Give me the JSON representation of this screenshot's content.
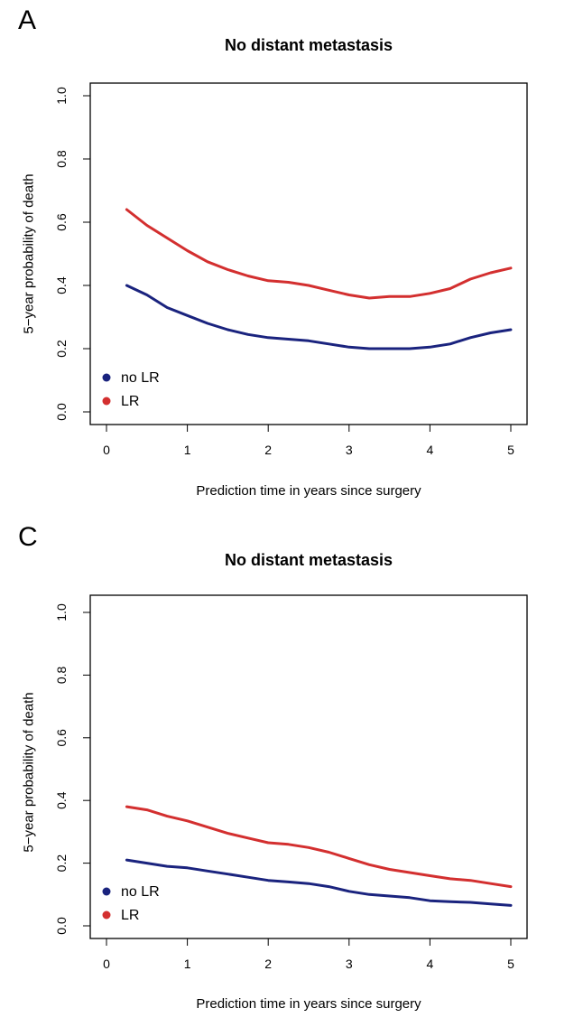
{
  "panels": [
    {
      "letter": "A",
      "title": "No distant metastasis",
      "xlabel": "Prediction time in years since surgery",
      "ylabel": "5−year probability of death"
    },
    {
      "letter": "C",
      "title": "No distant metastasis",
      "xlabel": "Prediction time in years since surgery",
      "ylabel": "5−year probability of death"
    }
  ],
  "chart_data": [
    {
      "type": "line",
      "title": "No distant metastasis",
      "xlabel": "Prediction time in years since surgery",
      "ylabel": "5−year probability of death",
      "xlim": [
        0,
        5
      ],
      "ylim": [
        0,
        1
      ],
      "xticks": [
        "0",
        "1",
        "2",
        "3",
        "4",
        "5"
      ],
      "yticks": [
        "0.0",
        "0.2",
        "0.4",
        "0.6",
        "0.8",
        "1.0"
      ],
      "grid": false,
      "legend_position": "bottom-left",
      "x": [
        0.25,
        0.5,
        0.75,
        1.0,
        1.25,
        1.5,
        1.75,
        2.0,
        2.25,
        2.5,
        2.75,
        3.0,
        3.25,
        3.5,
        3.75,
        4.0,
        4.25,
        4.5,
        4.75,
        5.0
      ],
      "series": [
        {
          "name": "no LR",
          "color": "#1a237e",
          "values": [
            0.4,
            0.37,
            0.33,
            0.305,
            0.28,
            0.26,
            0.245,
            0.235,
            0.23,
            0.225,
            0.215,
            0.205,
            0.2,
            0.2,
            0.2,
            0.205,
            0.215,
            0.235,
            0.25,
            0.26
          ]
        },
        {
          "name": "LR",
          "color": "#d32f2f",
          "values": [
            0.64,
            0.59,
            0.55,
            0.51,
            0.475,
            0.45,
            0.43,
            0.415,
            0.41,
            0.4,
            0.385,
            0.37,
            0.36,
            0.365,
            0.365,
            0.375,
            0.39,
            0.42,
            0.44,
            0.455
          ]
        }
      ]
    },
    {
      "type": "line",
      "title": "No distant metastasis",
      "xlabel": "Prediction time in years since surgery",
      "ylabel": "5−year probability of death",
      "xlim": [
        0,
        5
      ],
      "ylim": [
        0,
        1
      ],
      "xticks": [
        "0",
        "1",
        "2",
        "3",
        "4",
        "5"
      ],
      "yticks": [
        "0.0",
        "0.2",
        "0.4",
        "0.6",
        "0.8",
        "1.0"
      ],
      "grid": false,
      "legend_position": "bottom-left",
      "x": [
        0.25,
        0.5,
        0.75,
        1.0,
        1.25,
        1.5,
        1.75,
        2.0,
        2.25,
        2.5,
        2.75,
        3.0,
        3.25,
        3.5,
        3.75,
        4.0,
        4.25,
        4.5,
        4.75,
        5.0
      ],
      "series": [
        {
          "name": "no LR",
          "color": "#1a237e",
          "values": [
            0.21,
            0.2,
            0.19,
            0.185,
            0.175,
            0.165,
            0.155,
            0.145,
            0.14,
            0.135,
            0.125,
            0.11,
            0.1,
            0.095,
            0.09,
            0.08,
            0.077,
            0.075,
            0.07,
            0.065
          ]
        },
        {
          "name": "LR",
          "color": "#d32f2f",
          "values": [
            0.38,
            0.37,
            0.35,
            0.335,
            0.315,
            0.295,
            0.28,
            0.265,
            0.26,
            0.25,
            0.235,
            0.215,
            0.195,
            0.18,
            0.17,
            0.16,
            0.15,
            0.145,
            0.135,
            0.125
          ]
        }
      ]
    }
  ]
}
